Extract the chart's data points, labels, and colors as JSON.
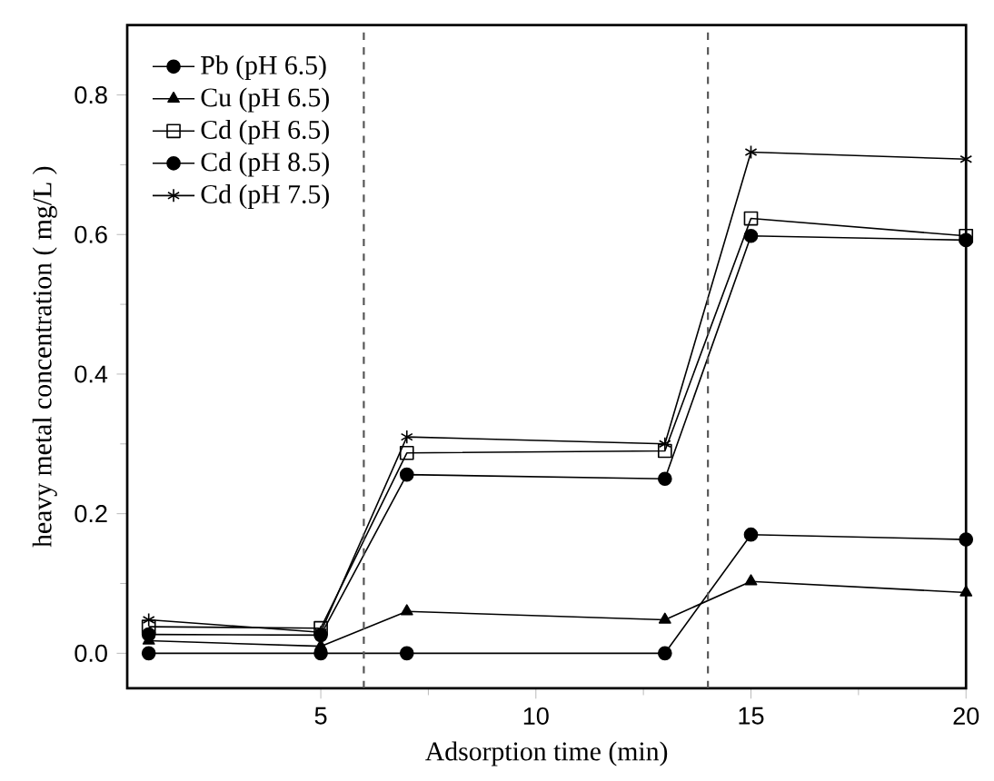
{
  "chart_data": {
    "type": "line",
    "xlabel": "Adsorption time  (min)",
    "ylabel": "heavy metal concentration ( mg/L )",
    "x": [
      1,
      5,
      7,
      13,
      15,
      20
    ],
    "series": [
      {
        "name": "Pb (pH 6.5)",
        "color": "#000000",
        "marker": "circle",
        "values": [
          0,
          0,
          0,
          0,
          0.17,
          0.163
        ]
      },
      {
        "name": "Cu (pH 6.5)",
        "color": "#000000",
        "marker": "triangle",
        "values": [
          0.018,
          0.01,
          0.06,
          0.048,
          0.103,
          0.087
        ]
      },
      {
        "name": "Cd (pH 6.5)",
        "color": "#000000",
        "marker": "square",
        "values": [
          0.038,
          0.036,
          0.287,
          0.29,
          0.623,
          0.598
        ]
      },
      {
        "name": "Cd (pH 8.5)",
        "color": "#000000",
        "marker": "circle",
        "values": [
          0.027,
          0.026,
          0.256,
          0.25,
          0.598,
          0.592
        ]
      },
      {
        "name": "Cd (pH 7.5)",
        "color": "#000000",
        "marker": "cross",
        "values": [
          0.048,
          0.03,
          0.31,
          0.3,
          0.718,
          0.708
        ]
      }
    ],
    "xlim": [
      0.5,
      20
    ],
    "ylim": [
      -0.05,
      0.9
    ],
    "xticks": [
      5,
      10,
      15,
      20
    ],
    "yticks": [
      {
        "value": 0,
        "label": "0.0"
      },
      {
        "value": 0.2,
        "label": "0.2"
      },
      {
        "value": 0.4,
        "label": "0.4"
      },
      {
        "value": 0.6,
        "label": "0.6"
      },
      {
        "value": 0.8,
        "label": "0.8"
      }
    ],
    "ref_lines": [
      {
        "axis": "x",
        "value": 6,
        "color": "#555555",
        "line_style": "dashed"
      },
      {
        "axis": "x",
        "value": 14,
        "color": "#555555",
        "line_style": "dashed"
      }
    ],
    "legend": "top left",
    "grid": false,
    "line_style": "solid"
  }
}
